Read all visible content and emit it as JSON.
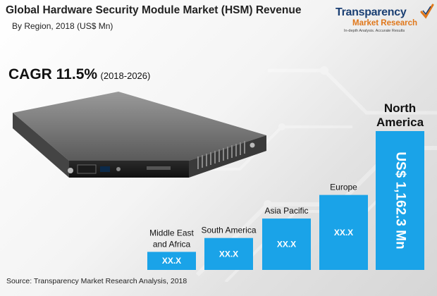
{
  "title": "Global Hardware Security Module Market (HSM) Revenue",
  "subtitle": "By Region, 2018 (US$ Mn)",
  "logo": {
    "name_top": "Transparency",
    "name_bottom": "Market Research",
    "tagline": "In-depth Analysis. Accurate Results"
  },
  "cagr": {
    "label": "CAGR 11.5%",
    "period": "(2018-2026)"
  },
  "source": "Source: Transparency Market Research Analysis, 2018",
  "colors": {
    "bar": "#1aa3e8",
    "bar_label": "#ffffff",
    "title": "#222222",
    "logo_blue": "#1a3f73",
    "logo_orange": "#e0771a"
  },
  "icons": [
    "hsm-server-image",
    "tmr-logo-check-icon"
  ],
  "chart_data": {
    "type": "bar",
    "title": "Global Hardware Security Module Market (HSM) Revenue",
    "subtitle": "By Region, 2018 (US$ Mn)",
    "categories": [
      "Middle East and Africa",
      "South America",
      "Asia Pacific",
      "Europe",
      "North America"
    ],
    "category_lines": [
      [
        "Middle East",
        "and Africa"
      ],
      [
        "South America"
      ],
      [
        "Asia Pacific"
      ],
      [
        "Europe"
      ],
      [
        "North",
        "America"
      ]
    ],
    "value_labels": [
      "XX.X",
      "XX.X",
      "XX.X",
      "XX.X",
      "US$ 1,162.3 Mn"
    ],
    "values": [
      null,
      null,
      null,
      null,
      1162.3
    ],
    "relative_heights": [
      0.13,
      0.23,
      0.37,
      0.54,
      1.0
    ],
    "ylim": [
      0,
      1162.3
    ],
    "grid": false,
    "legend": "none"
  }
}
